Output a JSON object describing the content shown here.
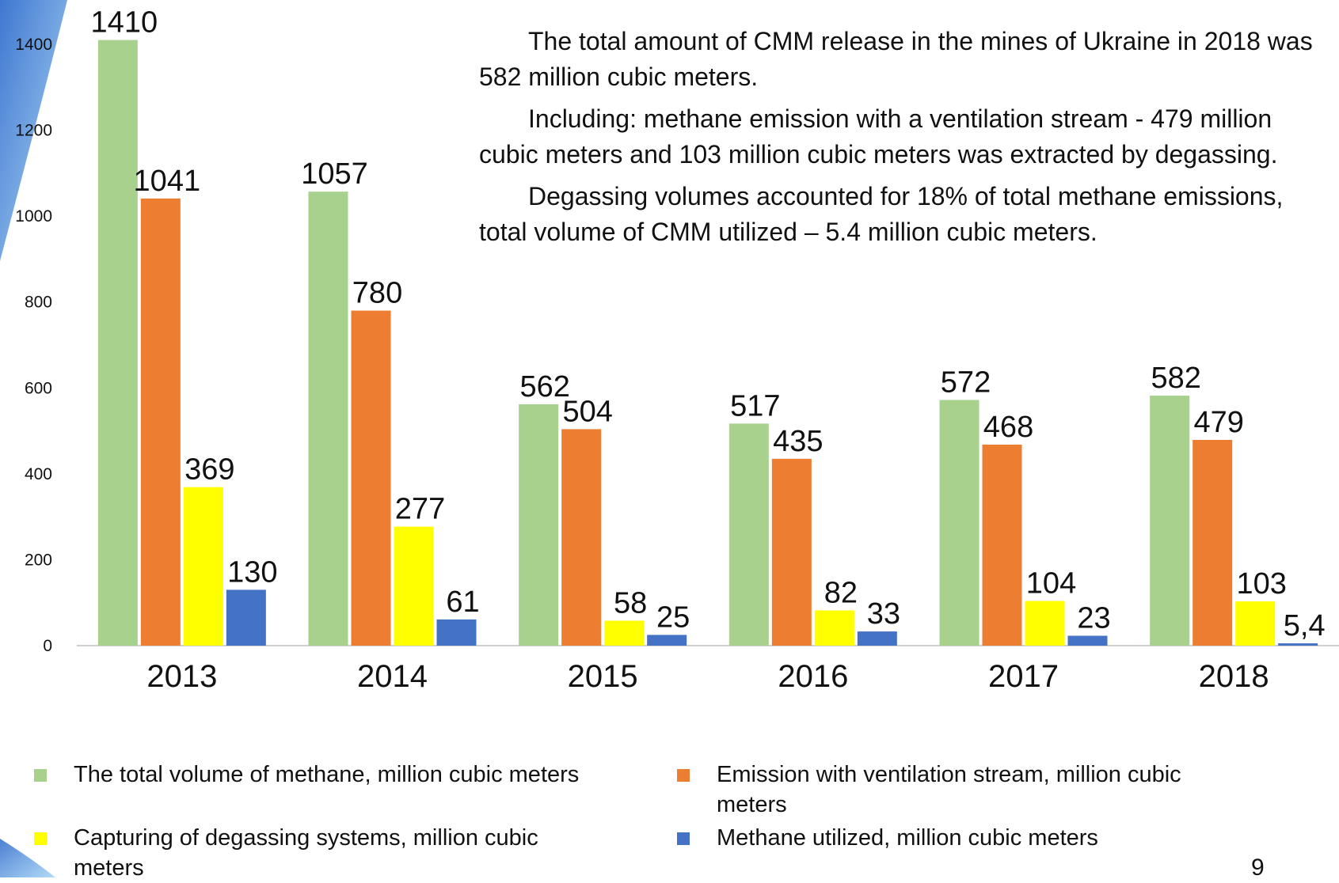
{
  "chart_data": {
    "type": "bar",
    "categories": [
      "2013",
      "2014",
      "2015",
      "2016",
      "2017",
      "2018"
    ],
    "series": [
      {
        "name": "The total volume of methane, million cubic meters",
        "color": "#a9d18e",
        "values": [
          1410,
          1057,
          562,
          517,
          572,
          582
        ]
      },
      {
        "name": "Emission with ventilation stream, million cubic meters",
        "color": "#ed7d31",
        "values": [
          1041,
          780,
          504,
          435,
          468,
          479
        ]
      },
      {
        "name": "Capturing of degassing systems, million cubic meters",
        "color": "#ffff00",
        "values": [
          369,
          277,
          58,
          82,
          104,
          103
        ]
      },
      {
        "name": "Methane utilized, million cubic meters",
        "color": "#4472c4",
        "values": [
          130,
          61,
          25,
          33,
          23,
          5.4
        ],
        "value_labels": [
          "130",
          "61",
          "25",
          "33",
          "23",
          "5,4"
        ]
      }
    ],
    "ylim": [
      0,
      1400
    ],
    "yticks": [
      0,
      200,
      400,
      600,
      800,
      1000,
      1200,
      1400
    ],
    "grid": false,
    "legend": "bottom",
    "annotations": [
      "The total amount of CMM release in the mines of Ukraine in 2018 was 582 million cubic meters.",
      "Including: methane emission with a ventilation stream - 479 million cubic meters and 103 million cubic meters was extracted by degassing.",
      "Degassing volumes accounted for 18% of total methane emissions, total volume of CMM utilized – 5.4 million cubic meters."
    ]
  },
  "page_number": "9"
}
